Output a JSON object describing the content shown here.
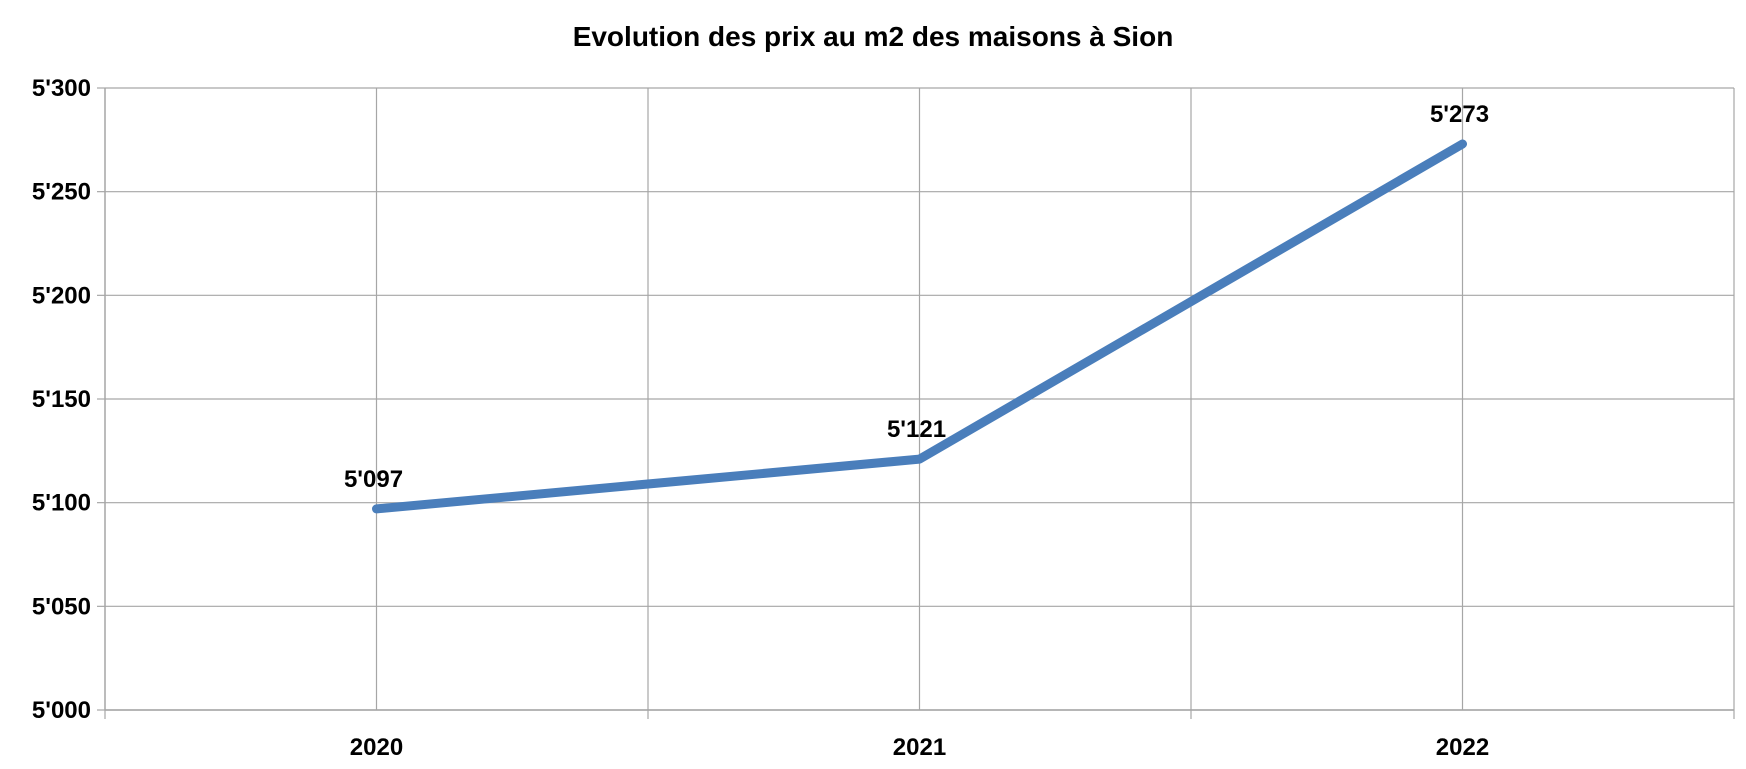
{
  "chart_data": {
    "type": "line",
    "title": "Evolution des prix au m2 des maisons à Sion",
    "xlabel": "",
    "ylabel": "",
    "categories": [
      "2020",
      "2021",
      "2022"
    ],
    "series": [
      {
        "values": [
          5097,
          5121,
          5273
        ],
        "data_labels": [
          "5'097",
          "5'121",
          "5'273"
        ],
        "color": "#4A7EBB"
      }
    ],
    "ylim": [
      5000,
      5300
    ],
    "y_ticks": [
      5000,
      5050,
      5100,
      5150,
      5200,
      5250,
      5300
    ],
    "y_tick_labels": [
      "5'000",
      "5'050",
      "5'100",
      "5'150",
      "5'200",
      "5'250",
      "5'300"
    ],
    "grid": true,
    "legend": "none",
    "gridline_color": "#A6A6A6"
  }
}
